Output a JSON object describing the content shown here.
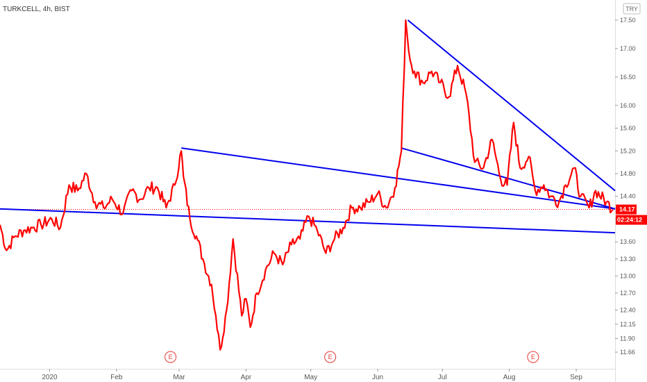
{
  "chart_data": {
    "type": "line",
    "title": "TURKCELL, 4h, BIST",
    "currency": "TRY",
    "y_ticks": [
      17.5,
      17.0,
      16.5,
      16.0,
      15.6,
      15.2,
      14.8,
      14.4,
      14.0,
      13.6,
      13.3,
      13.0,
      12.7,
      12.4,
      12.15,
      11.9,
      11.66
    ],
    "x_ticks": [
      "2020",
      "Feb",
      "Mar",
      "Apr",
      "May",
      "Jun",
      "Jul",
      "Aug",
      "Sep"
    ],
    "earnings_markers": [
      "E",
      "E",
      "E"
    ],
    "last_price": "14.17",
    "countdown": "02:24:12",
    "series": [
      {
        "color": "#ff0000",
        "x": [
          "2019-12-09",
          "2019-12-12",
          "2019-12-16",
          "2019-12-20",
          "2019-12-24",
          "2019-12-28",
          "2020-01-02",
          "2020-01-06",
          "2020-01-10",
          "2020-01-14",
          "2020-01-18",
          "2020-01-22",
          "2020-01-26",
          "2020-01-30",
          "2020-02-04",
          "2020-02-08",
          "2020-02-12",
          "2020-02-16",
          "2020-02-20",
          "2020-02-24",
          "2020-02-28",
          "2020-03-02",
          "2020-03-03",
          "2020-03-06",
          "2020-03-09",
          "2020-03-12",
          "2020-03-16",
          "2020-03-18",
          "2020-03-20",
          "2020-03-23",
          "2020-03-26",
          "2020-03-30",
          "2020-04-01",
          "2020-04-03",
          "2020-04-06",
          "2020-04-10",
          "2020-04-14",
          "2020-04-18",
          "2020-04-22",
          "2020-04-26",
          "2020-04-30",
          "2020-05-04",
          "2020-05-08",
          "2020-05-12",
          "2020-05-16",
          "2020-05-20",
          "2020-05-24",
          "2020-05-28",
          "2020-06-01",
          "2020-06-05",
          "2020-06-09",
          "2020-06-12",
          "2020-06-14",
          "2020-06-16",
          "2020-06-18",
          "2020-06-22",
          "2020-06-26",
          "2020-06-30",
          "2020-07-04",
          "2020-07-08",
          "2020-07-12",
          "2020-07-16",
          "2020-07-20",
          "2020-07-24",
          "2020-07-28",
          "2020-07-31",
          "2020-08-03",
          "2020-08-06",
          "2020-08-10",
          "2020-08-13",
          "2020-08-17",
          "2020-08-20",
          "2020-08-24",
          "2020-08-27",
          "2020-08-31",
          "2020-09-03",
          "2020-09-07",
          "2020-09-10",
          "2020-09-15",
          "2020-09-18"
        ],
        "y": [
          13.9,
          13.45,
          13.7,
          13.8,
          13.85,
          13.9,
          14.0,
          13.85,
          14.6,
          14.5,
          14.8,
          14.3,
          14.2,
          14.35,
          14.1,
          14.5,
          14.35,
          14.55,
          14.55,
          14.2,
          14.6,
          15.2,
          14.75,
          14.0,
          13.7,
          13.3,
          12.85,
          12.3,
          11.7,
          12.4,
          13.65,
          12.3,
          12.6,
          12.1,
          12.7,
          13.1,
          13.4,
          13.2,
          13.55,
          13.65,
          14.05,
          13.8,
          13.4,
          13.65,
          13.85,
          14.2,
          14.2,
          14.3,
          14.45,
          14.2,
          14.55,
          15.2,
          17.5,
          16.8,
          16.6,
          16.4,
          16.6,
          16.4,
          16.15,
          16.7,
          16.2,
          15.0,
          14.9,
          15.4,
          14.7,
          14.6,
          15.7,
          14.9,
          15.1,
          14.5,
          14.6,
          14.4,
          14.3,
          14.6,
          14.9,
          14.4,
          14.2,
          14.5,
          14.3,
          14.17
        ]
      }
    ],
    "trendlines": [
      {
        "from": {
          "x": "2020-03-02",
          "y": 15.25
        },
        "to": {
          "x": "2020-09-19",
          "y": 14.18
        }
      },
      {
        "from": {
          "x": "2020-06-12",
          "y": 15.25
        },
        "to": {
          "x": "2020-09-19",
          "y": 14.18
        }
      },
      {
        "from": {
          "x": "2020-06-15",
          "y": 17.5
        },
        "to": {
          "x": "2020-09-19",
          "y": 14.5
        }
      },
      {
        "from": {
          "x": "2019-12-09",
          "y": 14.18
        },
        "to": {
          "x": "2020-09-19",
          "y": 13.76
        }
      }
    ],
    "ylim": [
      11.66,
      17.5
    ],
    "xlim": [
      "2019-12-09",
      "2020-09-19"
    ],
    "grid": false,
    "legend": "none"
  }
}
